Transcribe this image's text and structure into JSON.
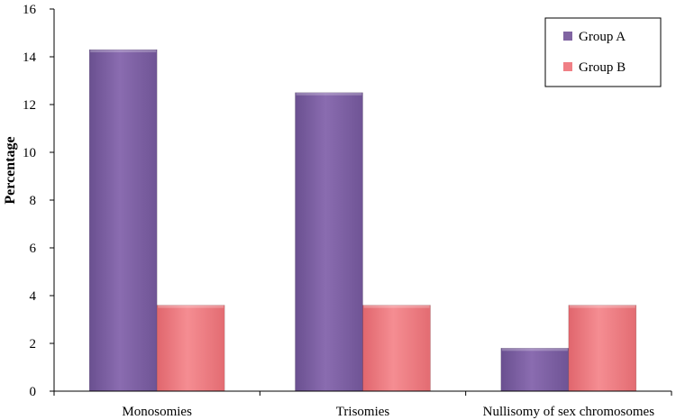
{
  "chart_data": {
    "type": "bar",
    "title": "",
    "xlabel": "",
    "ylabel": "Percentage",
    "categories": [
      "Monosomies",
      "Trisomies",
      "Nullisomy of sex chromosomes"
    ],
    "series": [
      {
        "name": "Group A",
        "values": [
          14.3,
          12.5,
          1.8
        ],
        "color": "#8064a2"
      },
      {
        "name": "Group B",
        "values": [
          3.6,
          3.6,
          3.6
        ],
        "color": "#f07f85"
      }
    ],
    "ylim": [
      0,
      16
    ],
    "yticks": [
      "0",
      "2",
      "4",
      "6",
      "8",
      "10",
      "12",
      "14",
      "16"
    ],
    "grid": false,
    "legend_position": "top-right"
  }
}
